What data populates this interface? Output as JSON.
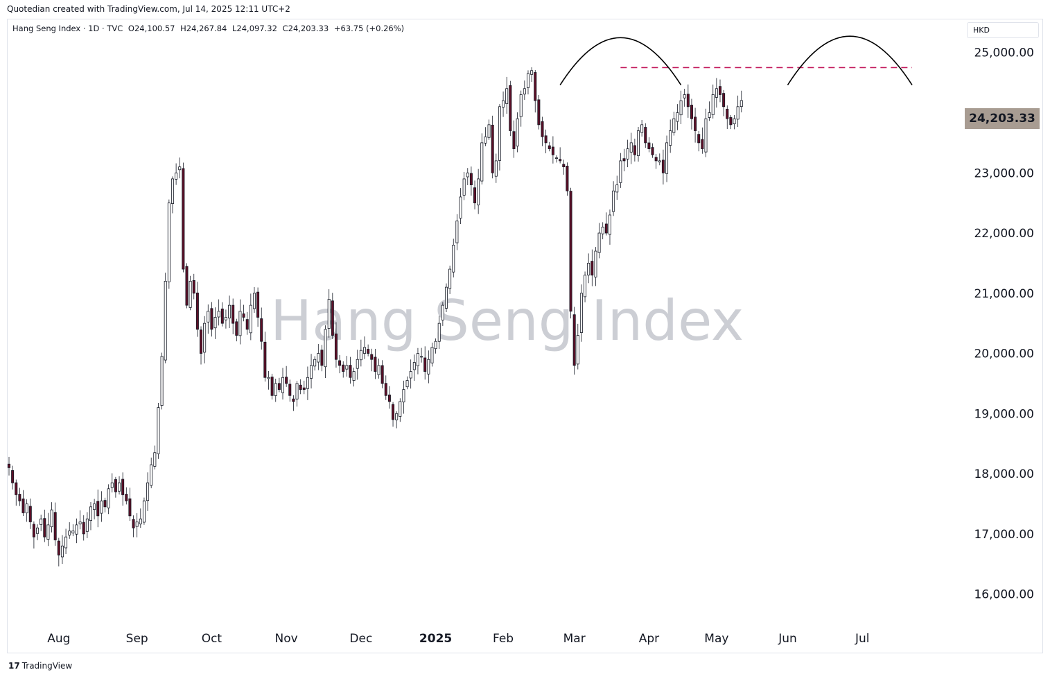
{
  "header": {
    "caption": "Quotedian created with TradingView.com, Jul 14, 2025 12:11 UTC+2"
  },
  "legend": {
    "symbol": "Hang Seng Index · 1D · TVC",
    "open": "O24,100.57",
    "high": "H24,267.84",
    "low": "L24,097.32",
    "close": "C24,203.33",
    "change": "+63.75 (+0.26%)"
  },
  "currency": "HKD",
  "watermark": "Hang Seng Index",
  "footer": {
    "logo": "17",
    "brand": "TradingView"
  },
  "chart_data": {
    "type": "candlestick",
    "title": "Hang Seng Index",
    "ylim": [
      15500,
      25550
    ],
    "y_ticks": [
      "25,000.00",
      "24,000.00",
      "23,000.00",
      "22,000.00",
      "21,000.00",
      "20,000.00",
      "19,000.00",
      "18,000.00",
      "17,000.00",
      "16,000.00"
    ],
    "y_tick_values": [
      25000,
      24000,
      23000,
      22000,
      21000,
      20000,
      19000,
      18000,
      17000,
      16000
    ],
    "x_ticks": [
      {
        "label": "Aug",
        "index": 14,
        "bold": false
      },
      {
        "label": "Sep",
        "index": 36,
        "bold": false
      },
      {
        "label": "Oct",
        "index": 57,
        "bold": false
      },
      {
        "label": "Nov",
        "index": 78,
        "bold": false
      },
      {
        "label": "Dec",
        "index": 99,
        "bold": false
      },
      {
        "label": "2025",
        "index": 120,
        "bold": true
      },
      {
        "label": "Feb",
        "index": 139,
        "bold": false
      },
      {
        "label": "Mar",
        "index": 159,
        "bold": false
      },
      {
        "label": "Apr",
        "index": 180,
        "bold": false
      },
      {
        "label": "May",
        "index": 199,
        "bold": false
      },
      {
        "label": "Jun",
        "index": 219,
        "bold": false
      },
      {
        "label": "Jul",
        "index": 240,
        "bold": false
      }
    ],
    "last_price": "24,203.33",
    "resistance_level": 24750,
    "colors": {
      "up": "#ffffff",
      "down": "#5d0f27",
      "outline": "#131722",
      "resistance": "#c2185b",
      "arc": "#000000",
      "last_price_bg": "#a89c92"
    },
    "arcs": [
      {
        "from_index": 155,
        "to_index": 189,
        "peak": 25130,
        "ends": 24460
      },
      {
        "from_index": 219,
        "to_index": 254,
        "peak": 25150,
        "ends": 24460
      }
    ],
    "resistance_from_index": 172,
    "resistance_to_index": 254,
    "closes": [
      18100,
      17850,
      17650,
      17550,
      17350,
      17500,
      17200,
      16950,
      17100,
      17250,
      16950,
      17150,
      17400,
      16900,
      16650,
      16800,
      16950,
      17050,
      17050,
      17150,
      17200,
      17000,
      17250,
      17450,
      17500,
      17300,
      17550,
      17450,
      17750,
      17850,
      17700,
      17850,
      17650,
      17550,
      17300,
      17100,
      17200,
      17250,
      17550,
      17850,
      18150,
      18350,
      19100,
      19950,
      21200,
      22500,
      22900,
      23000,
      23100,
      21400,
      20800,
      21200,
      21000,
      20400,
      20000,
      20500,
      20700,
      20400,
      20600,
      20700,
      20500,
      20600,
      20800,
      20500,
      20300,
      20700,
      20600,
      20400,
      20800,
      21000,
      20600,
      20200,
      19600,
      19600,
      19300,
      19500,
      19400,
      19600,
      19500,
      19300,
      19200,
      19500,
      19400,
      19400,
      19600,
      19800,
      19900,
      20000,
      19800,
      20400,
      20900,
      20300,
      19900,
      19800,
      19700,
      19800,
      19600,
      19700,
      19900,
      20050,
      20100,
      20000,
      19900,
      19700,
      19800,
      19500,
      19300,
      19200,
      18900,
      19000,
      19200,
      19400,
      19550,
      19700,
      19850,
      20000,
      19950,
      19700,
      19900,
      20100,
      20200,
      20500,
      20800,
      21100,
      21400,
      21800,
      22200,
      22600,
      22900,
      23000,
      22800,
      22500,
      22900,
      23500,
      23600,
      23800,
      23000,
      23200,
      24100,
      24200,
      24400,
      23700,
      23400,
      23900,
      24300,
      24400,
      24650,
      24700,
      24200,
      23800,
      23600,
      23500,
      23400,
      23300,
      23250,
      23200,
      23100,
      22700,
      20700,
      19800,
      20300,
      21000,
      21300,
      21500,
      21300,
      21700,
      22000,
      22100,
      22000,
      22300,
      22700,
      22800,
      23200,
      23200,
      23400,
      23500,
      23300,
      23700,
      23800,
      23500,
      23400,
      23300,
      23200,
      23200,
      23000,
      23500,
      23700,
      23900,
      24000,
      24200,
      24300,
      24100,
      23900,
      23700,
      23500,
      23400,
      23900,
      24000,
      24300,
      24400,
      24300,
      24100,
      23900,
      23800,
      23900,
      24100,
      24203
    ]
  }
}
